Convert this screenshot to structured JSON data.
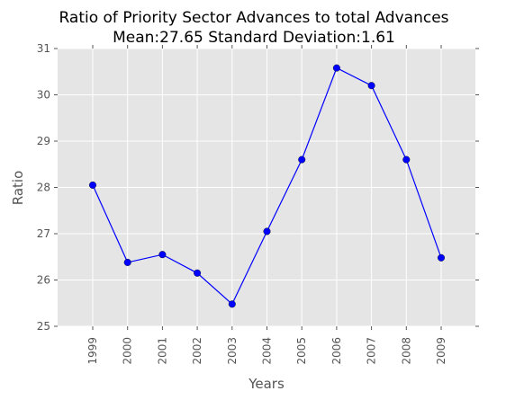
{
  "chart_data": {
    "type": "line",
    "title": "Ratio of Priority Sector Advances to total Advances",
    "subtitle": "Mean:27.65 Standard Deviation:1.61",
    "xlabel": "Years",
    "ylabel": "Ratio",
    "x": [
      "1999",
      "2000",
      "2001",
      "2002",
      "2003",
      "2004",
      "2005",
      "2006",
      "2007",
      "2008",
      "2009"
    ],
    "y": [
      28.05,
      26.38,
      26.55,
      26.15,
      25.48,
      27.05,
      28.6,
      30.58,
      30.2,
      28.6,
      26.48
    ],
    "yticks": [
      "25",
      "26",
      "27",
      "28",
      "29",
      "30",
      "31"
    ],
    "ylim": [
      25,
      31
    ],
    "grid": true,
    "background": "#e5e5e5",
    "line_color": "#0000ff"
  }
}
